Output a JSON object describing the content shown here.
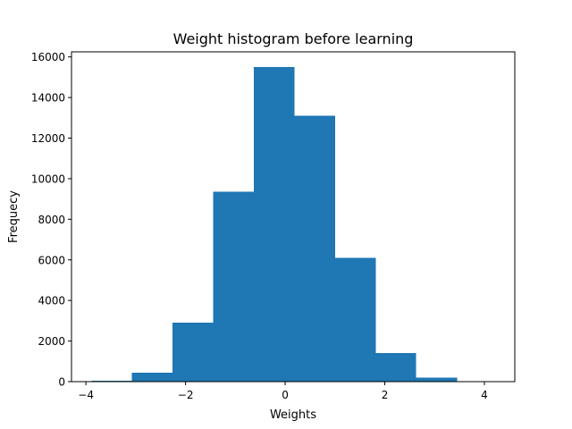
{
  "chart_data": {
    "type": "bar",
    "title": "Weight histogram before learning",
    "xlabel": "Weights",
    "ylabel": "Frequecy",
    "xlim": [
      -4.29,
      4.61
    ],
    "ylim": [
      0,
      16250
    ],
    "xticks": [
      -4,
      -2,
      0,
      2,
      4
    ],
    "xtick_labels": [
      "−4",
      "−2",
      "0",
      "2",
      "4"
    ],
    "yticks": [
      0,
      2000,
      4000,
      6000,
      8000,
      10000,
      12000,
      14000,
      16000
    ],
    "ytick_labels": [
      "0",
      "2000",
      "4000",
      "6000",
      "8000",
      "10000",
      "12000",
      "14000",
      "16000"
    ],
    "bin_edges": [
      -3.89,
      -3.08,
      -2.26,
      -1.45,
      -0.63,
      0.19,
      1.0,
      1.82,
      2.63,
      3.45,
      4.26
    ],
    "values": [
      50,
      450,
      2900,
      9350,
      15500,
      13100,
      6100,
      1400,
      200,
      20
    ],
    "grid": false,
    "legend": false,
    "color": "#1f77b4"
  }
}
